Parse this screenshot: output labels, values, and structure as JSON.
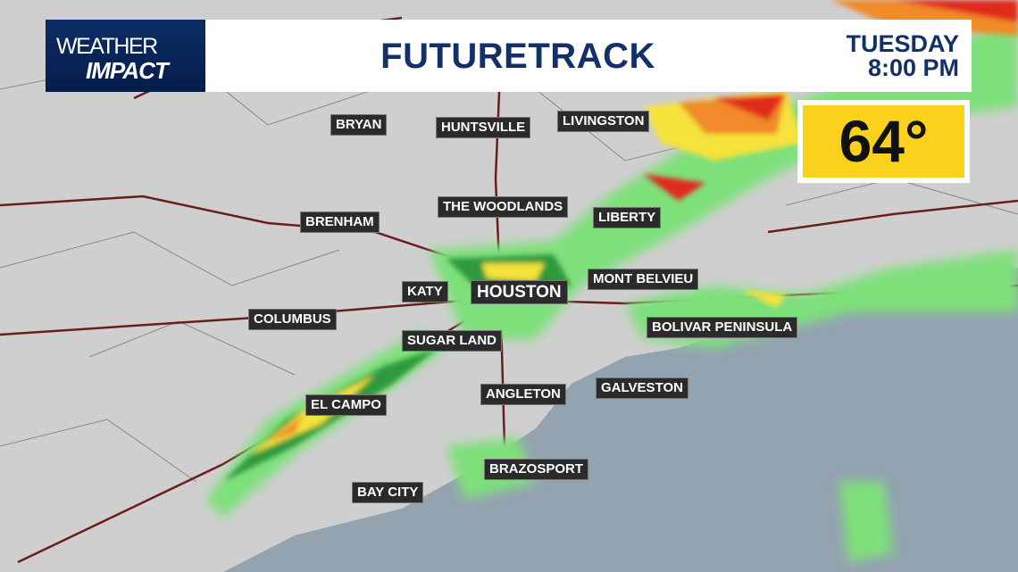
{
  "logo": {
    "line1": "WEATHER",
    "line2": "IMPACT"
  },
  "header": {
    "title": "FUTURETRACK",
    "day": "TUESDAY",
    "time": "8:00 PM"
  },
  "temperature": {
    "value": "64°"
  },
  "cities": [
    {
      "name": "BRYAN"
    },
    {
      "name": "HUNTSVILLE"
    },
    {
      "name": "LIVINGSTON"
    },
    {
      "name": "THE WOODLANDS"
    },
    {
      "name": "LIBERTY"
    },
    {
      "name": "BRENHAM"
    },
    {
      "name": "MONT BELVIEU"
    },
    {
      "name": "KATY"
    },
    {
      "name": "HOUSTON"
    },
    {
      "name": "COLUMBUS"
    },
    {
      "name": "BOLIVAR PENINSULA"
    },
    {
      "name": "SUGAR LAND"
    },
    {
      "name": "ANGLETON"
    },
    {
      "name": "GALVESTON"
    },
    {
      "name": "EL CAMPO"
    },
    {
      "name": "BRAZOSPORT"
    },
    {
      "name": "BAY CITY"
    }
  ],
  "colors": {
    "brand": "#13306a",
    "temp_box": "#fbd11c",
    "radar_light": "#7ee07a",
    "radar_dark": "#2f9a3c",
    "radar_yellow": "#f5e23a",
    "radar_orange": "#f08a2a",
    "radar_red": "#e02a1e",
    "water": "#8fa0ad"
  }
}
